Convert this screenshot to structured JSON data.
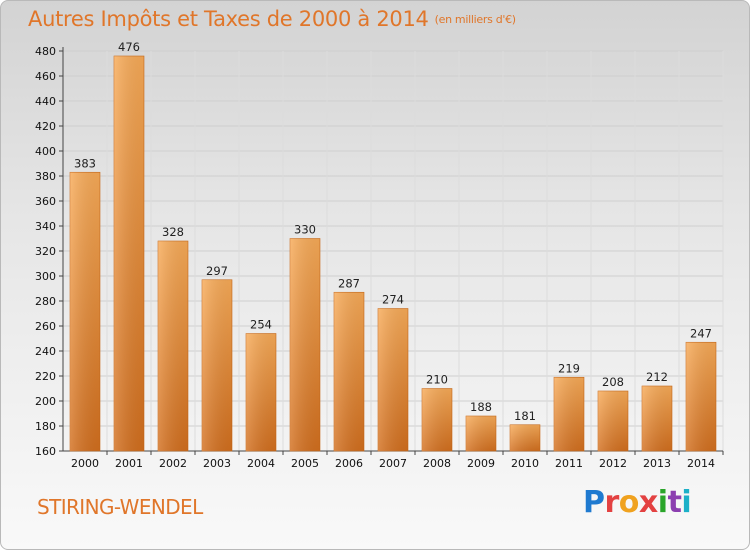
{
  "header": {
    "title": "Autres Impôts et Taxes de 2000 à 2014",
    "subtitle": "(en milliers d'€)"
  },
  "footer": {
    "city": "STIRING-WENDEL",
    "logo": [
      "P",
      "r",
      "o",
      "x",
      "i",
      "t",
      "i"
    ]
  },
  "colors": {
    "bar_light": "#f7a955",
    "bar_dark": "#d87320",
    "accent": "#e0762a"
  },
  "chart_data": {
    "type": "bar",
    "title": "Autres Impôts et Taxes de 2000 à 2014",
    "subtitle": "(en milliers d'€)",
    "categories": [
      "2000",
      "2001",
      "2002",
      "2003",
      "2004",
      "2005",
      "2006",
      "2007",
      "2008",
      "2009",
      "2010",
      "2011",
      "2012",
      "2013",
      "2014"
    ],
    "values": [
      383,
      476,
      328,
      297,
      254,
      330,
      287,
      274,
      210,
      188,
      181,
      219,
      208,
      212,
      247
    ],
    "ylim": [
      160,
      480
    ],
    "yticks": [
      160,
      180,
      200,
      220,
      240,
      260,
      280,
      300,
      320,
      340,
      360,
      380,
      400,
      420,
      440,
      460,
      480
    ],
    "grid": true,
    "legend": "none"
  }
}
